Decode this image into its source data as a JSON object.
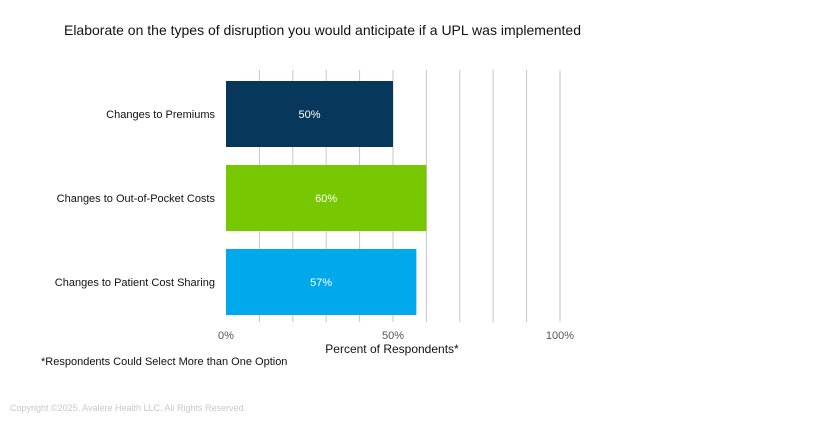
{
  "chart_data": {
    "type": "bar",
    "orientation": "horizontal",
    "title": "Elaborate on the types of disruption you would anticipate if a UPL was implemented",
    "categories": [
      "Changes to Premiums",
      "Changes to Out-of-Pocket Costs",
      "Changes to Patient Cost Sharing"
    ],
    "values": [
      50,
      60,
      57
    ],
    "value_labels": [
      "50%",
      "60%",
      "57%"
    ],
    "colors": [
      "#07385b",
      "#77c800",
      "#00a8ec"
    ],
    "xlabel": "Percent of Respondents*",
    "ylabel": "",
    "xlim": [
      0,
      100
    ],
    "x_ticks": [
      0,
      50,
      100
    ],
    "x_tick_labels": [
      "0%",
      "50%",
      "100%"
    ],
    "grid": true,
    "gridline_step": 10,
    "legend": "none"
  },
  "footnote": "*Respondents Could Select More than One Option",
  "copyright": "Copyright ©2025. Avalere Health LLC. All Rights Reserved."
}
